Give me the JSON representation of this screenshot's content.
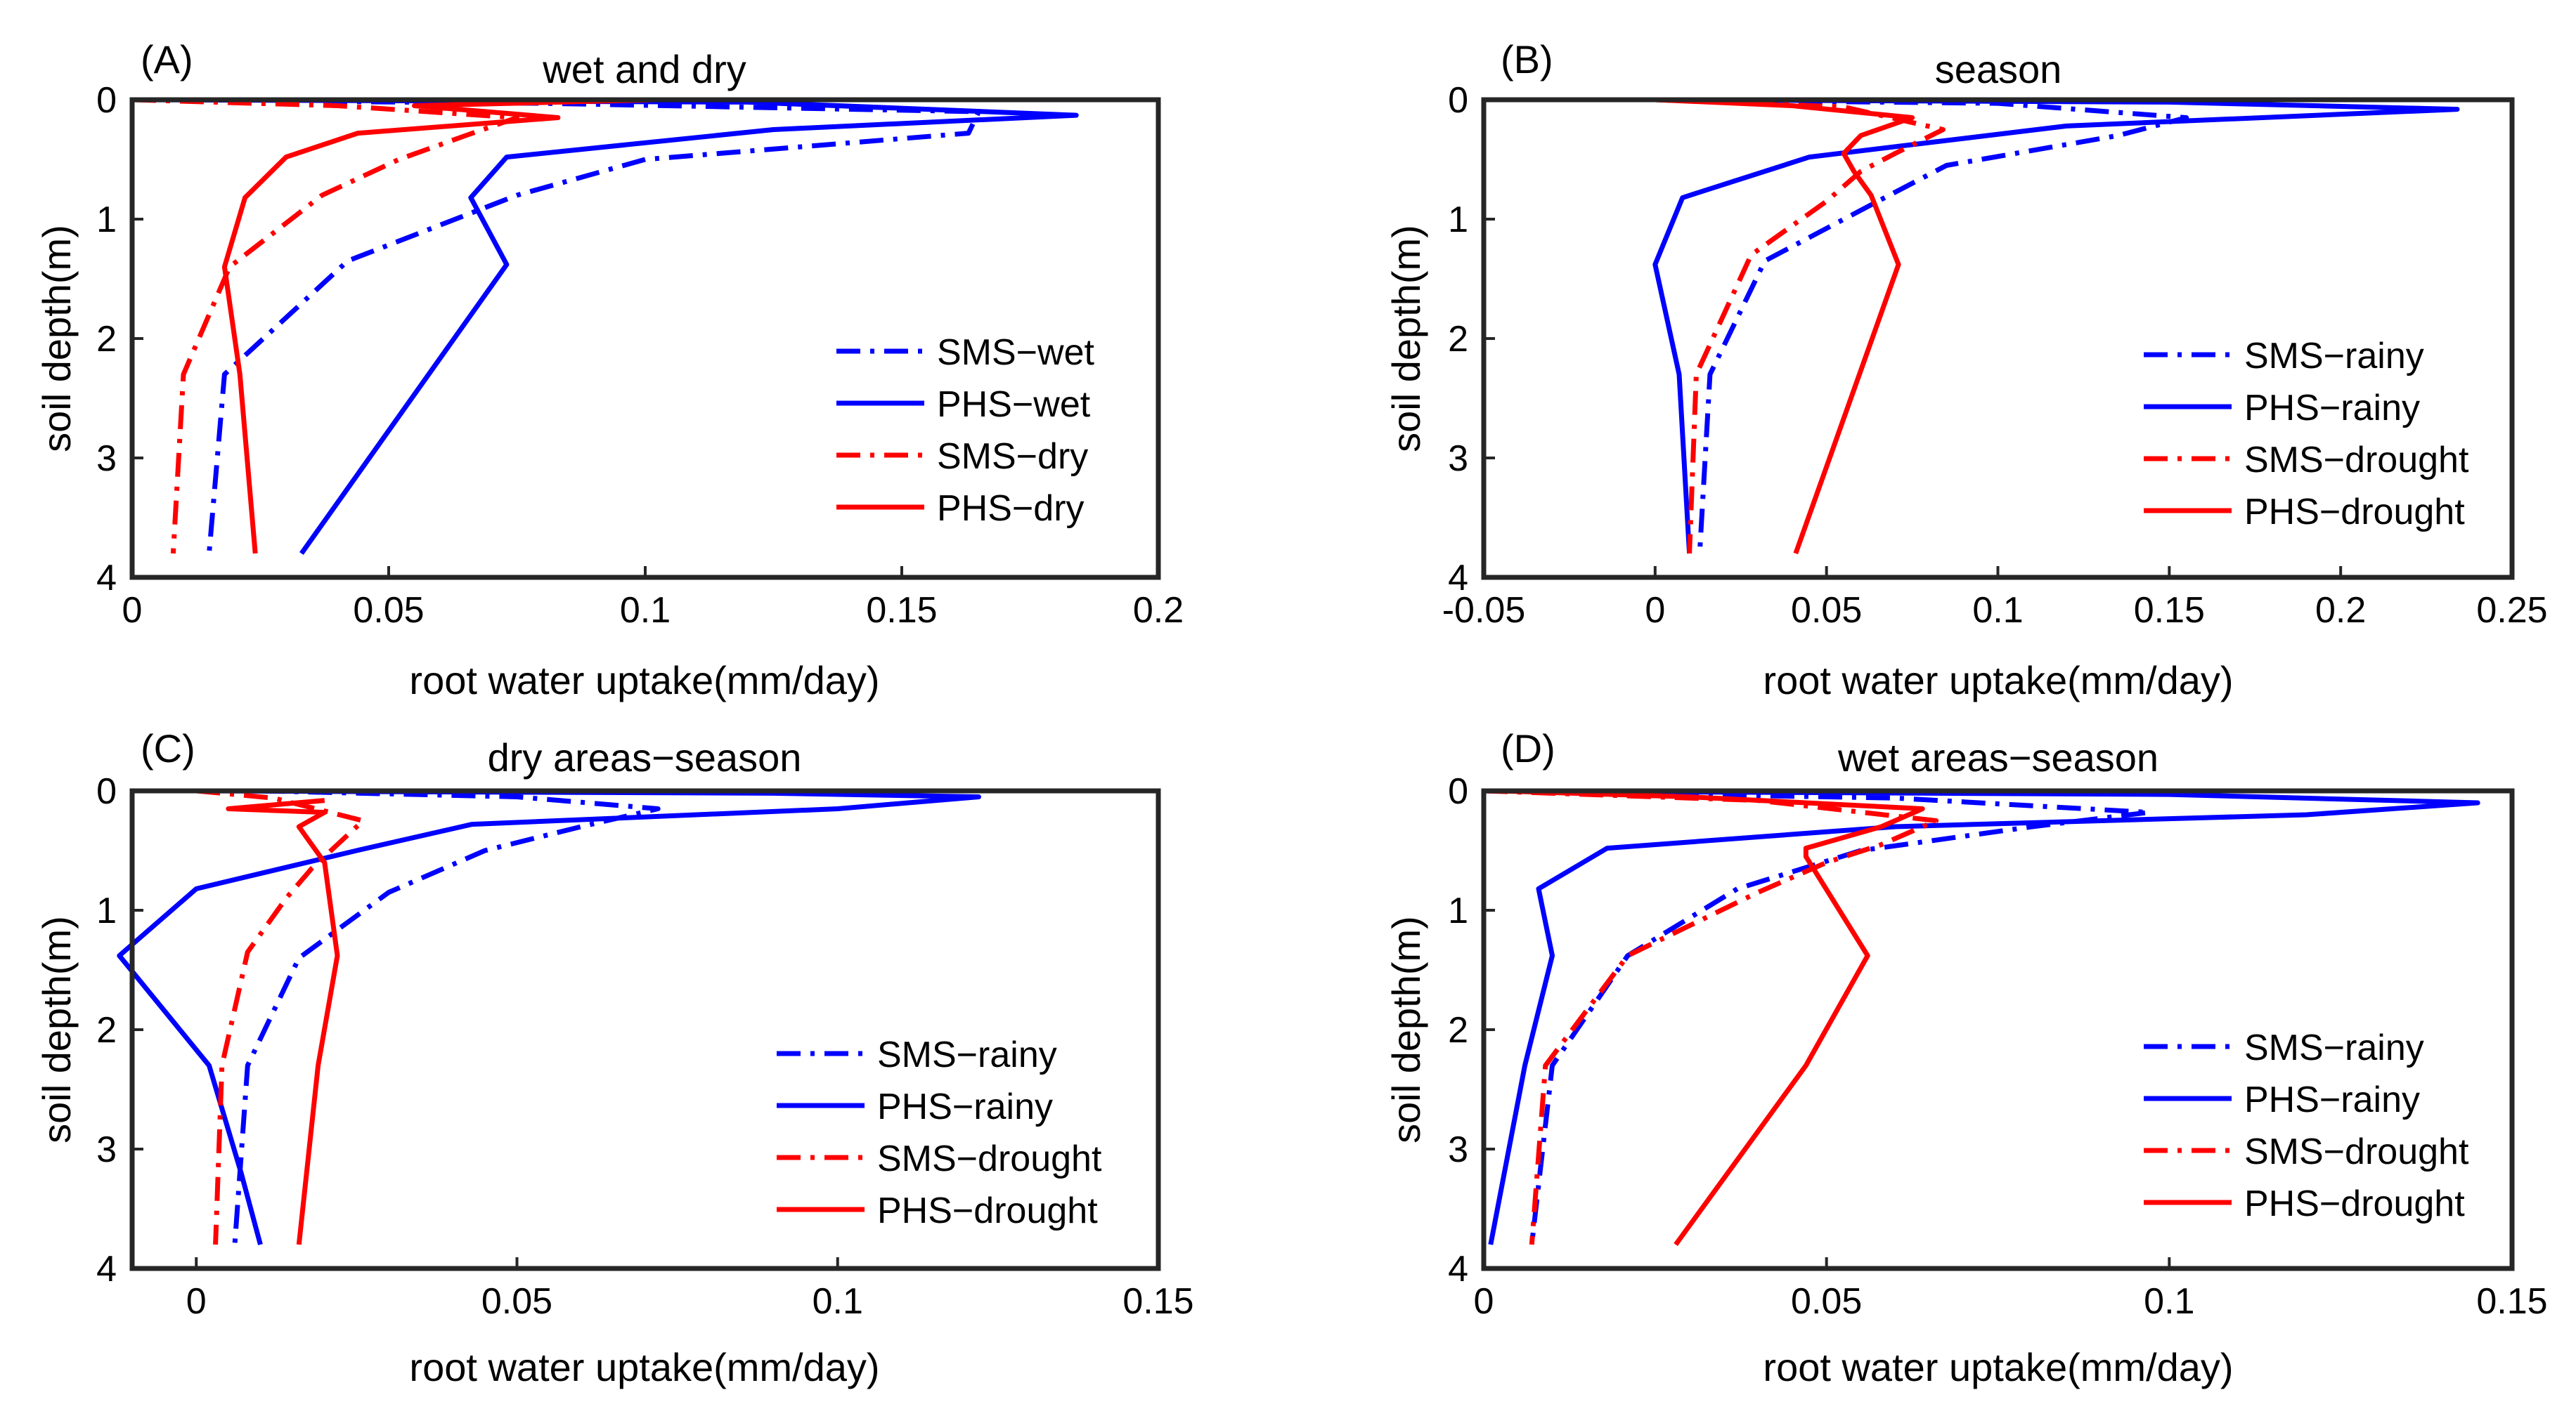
{
  "chart_data": [
    {
      "type": "line",
      "panel_label": "(A)",
      "title": "wet and dry",
      "xlabel": "root water uptake(mm/day)",
      "ylabel": "soil depth(m)",
      "xlim": [
        0,
        0.2
      ],
      "ylim": [
        0,
        4
      ],
      "y_reversed": true,
      "xticks": [
        "0",
        "0.05",
        "0.1",
        "0.15",
        "0.2"
      ],
      "yticks": [
        "0",
        "1",
        "2",
        "3",
        "4"
      ],
      "legend_position": "bottom-right",
      "series": [
        {
          "name": "SMS−wet",
          "color": "#0000ff",
          "dash": "dashdot",
          "x": [
            0,
            0.08,
            0.165,
            0.163,
            0.1,
            0.075,
            0.042,
            0.018,
            0.015
          ],
          "y": [
            0,
            0.03,
            0.1,
            0.28,
            0.5,
            0.8,
            1.35,
            2.3,
            3.8
          ]
        },
        {
          "name": "PHS−wet",
          "color": "#0000ff",
          "dash": "solid",
          "x": [
            0,
            0.12,
            0.184,
            0.125,
            0.073,
            0.066,
            0.073,
            0.033
          ],
          "y": [
            0,
            0.02,
            0.13,
            0.25,
            0.48,
            0.82,
            1.38,
            3.8
          ]
        },
        {
          "name": "SMS−dry",
          "color": "#ff0000",
          "dash": "dashdot",
          "x": [
            0,
            0.04,
            0.075,
            0.065,
            0.052,
            0.037,
            0.019,
            0.01,
            0.008
          ],
          "y": [
            0,
            0.05,
            0.15,
            0.3,
            0.5,
            0.8,
            1.4,
            2.3,
            3.8
          ]
        },
        {
          "name": "PHS−dry",
          "color": "#ff0000",
          "dash": "solid",
          "x": [
            0.102,
            0.055,
            0.083,
            0.044,
            0.03,
            0.022,
            0.018,
            0.021,
            0.024
          ],
          "y": [
            0,
            0.05,
            0.15,
            0.28,
            0.48,
            0.82,
            1.4,
            2.3,
            3.8
          ]
        }
      ]
    },
    {
      "type": "line",
      "panel_label": "(B)",
      "title": "season",
      "xlabel": "root water uptake(mm/day)",
      "ylabel": "soil depth(m)",
      "xlim": [
        -0.05,
        0.25
      ],
      "ylim": [
        0,
        4
      ],
      "y_reversed": true,
      "xticks": [
        "-0.05",
        "0",
        "0.05",
        "0.1",
        "0.15",
        "0.2",
        "0.25"
      ],
      "yticks": [
        "0",
        "1",
        "2",
        "3",
        "4"
      ],
      "legend_position": "bottom-right",
      "series": [
        {
          "name": "SMS−rainy",
          "color": "#0000ff",
          "dash": "dashdot",
          "x": [
            0,
            0.1,
            0.155,
            0.135,
            0.085,
            0.065,
            0.032,
            0.016,
            0.013
          ],
          "y": [
            0,
            0.03,
            0.15,
            0.3,
            0.55,
            0.85,
            1.35,
            2.3,
            3.8
          ]
        },
        {
          "name": "PHS−rainy",
          "color": "#0000ff",
          "dash": "solid",
          "x": [
            0,
            0.15,
            0.234,
            0.12,
            0.045,
            0.008,
            0,
            0.007,
            0.01
          ],
          "y": [
            0,
            0.02,
            0.08,
            0.22,
            0.48,
            0.82,
            1.38,
            2.3,
            3.8
          ]
        },
        {
          "name": "SMS−drought",
          "color": "#ff0000",
          "dash": "dashdot",
          "x": [
            0,
            0.055,
            0.084,
            0.07,
            0.06,
            0.05,
            0.028,
            0.012,
            0.01
          ],
          "y": [
            0,
            0.06,
            0.25,
            0.45,
            0.6,
            0.85,
            1.3,
            2.3,
            3.8
          ]
        },
        {
          "name": "PHS−drought",
          "color": "#ff0000",
          "dash": "solid",
          "x": [
            0,
            0.04,
            0.075,
            0.06,
            0.055,
            0.058,
            0.063,
            0.071,
            0.041
          ],
          "y": [
            0,
            0.05,
            0.15,
            0.3,
            0.45,
            0.6,
            0.8,
            1.38,
            3.8
          ]
        }
      ]
    },
    {
      "type": "line",
      "panel_label": "(C)",
      "title": "dry areas−season",
      "xlabel": "root water uptake(mm/day)",
      "ylabel": "soil depth(m)",
      "xlim": [
        -0.01,
        0.15
      ],
      "ylim": [
        0,
        4
      ],
      "y_reversed": true,
      "xticks": [
        "0",
        "0.05",
        "0.1",
        "0.15"
      ],
      "yticks": [
        "0",
        "1",
        "2",
        "3",
        "4"
      ],
      "legend_position": "bottom-right",
      "series": [
        {
          "name": "SMS−rainy",
          "color": "#0000ff",
          "dash": "dashdot",
          "x": [
            0.01,
            0.05,
            0.072,
            0.06,
            0.045,
            0.03,
            0.016,
            0.008,
            0.006
          ],
          "y": [
            0,
            0.05,
            0.15,
            0.3,
            0.5,
            0.85,
            1.4,
            2.3,
            3.8
          ]
        },
        {
          "name": "PHS−rainy",
          "color": "#0000ff",
          "dash": "solid",
          "x": [
            0,
            0.09,
            0.122,
            0.1,
            0.043,
            0.025,
            0,
            -0.012,
            0.002,
            0.007,
            0.01
          ],
          "y": [
            0,
            0.02,
            0.05,
            0.15,
            0.28,
            0.5,
            0.82,
            1.38,
            2.3,
            3.2,
            3.8
          ]
        },
        {
          "name": "SMS−drought",
          "color": "#ff0000",
          "dash": "dashdot",
          "x": [
            0,
            0.012,
            0.026,
            0.022,
            0.018,
            0.014,
            0.008,
            0.004,
            0.003
          ],
          "y": [
            0,
            0.06,
            0.25,
            0.45,
            0.65,
            0.9,
            1.35,
            2.3,
            3.8
          ]
        },
        {
          "name": "PHS−drought",
          "color": "#ff0000",
          "dash": "solid",
          "x": [
            0.02,
            0.005,
            0.02,
            0.016,
            0.018,
            0.02,
            0.022,
            0.019,
            0.016
          ],
          "y": [
            0.08,
            0.15,
            0.18,
            0.3,
            0.45,
            0.6,
            1.38,
            2.3,
            3.8
          ]
        }
      ]
    },
    {
      "type": "line",
      "panel_label": "(D)",
      "title": "wet areas−season",
      "xlabel": "root water uptake(mm/day)",
      "ylabel": "soil depth(m)",
      "xlim": [
        0,
        0.15
      ],
      "ylim": [
        0,
        4
      ],
      "y_reversed": true,
      "xticks": [
        "0",
        "0.05",
        "0.1",
        "0.15"
      ],
      "yticks": [
        "0",
        "1",
        "2",
        "3",
        "4"
      ],
      "legend_position": "bottom-right",
      "series": [
        {
          "name": "SMS−rainy",
          "color": "#0000ff",
          "dash": "dashdot",
          "x": [
            0,
            0.06,
            0.097,
            0.08,
            0.055,
            0.037,
            0.021,
            0.01,
            0.007
          ],
          "y": [
            0,
            0.06,
            0.18,
            0.3,
            0.5,
            0.82,
            1.38,
            2.3,
            3.8
          ]
        },
        {
          "name": "PHS−rainy",
          "color": "#0000ff",
          "dash": "solid",
          "x": [
            0,
            0.1,
            0.145,
            0.12,
            0.06,
            0.018,
            0.008,
            0.01,
            0.006,
            0.001
          ],
          "y": [
            0,
            0.03,
            0.1,
            0.2,
            0.3,
            0.48,
            0.82,
            1.38,
            2.3,
            3.8
          ]
        },
        {
          "name": "SMS−drought",
          "color": "#ff0000",
          "dash": "dashdot",
          "x": [
            0,
            0.04,
            0.066,
            0.058,
            0.05,
            0.04,
            0.021,
            0.009,
            0.007
          ],
          "y": [
            0,
            0.08,
            0.25,
            0.45,
            0.6,
            0.85,
            1.38,
            2.3,
            3.8
          ]
        },
        {
          "name": "PHS−drought",
          "color": "#ff0000",
          "dash": "solid",
          "x": [
            0.002,
            0.03,
            0.064,
            0.058,
            0.047,
            0.047,
            0.056,
            0.047,
            0.028
          ],
          "y": [
            0,
            0.05,
            0.15,
            0.3,
            0.48,
            0.55,
            1.38,
            2.3,
            3.8
          ]
        }
      ]
    }
  ]
}
